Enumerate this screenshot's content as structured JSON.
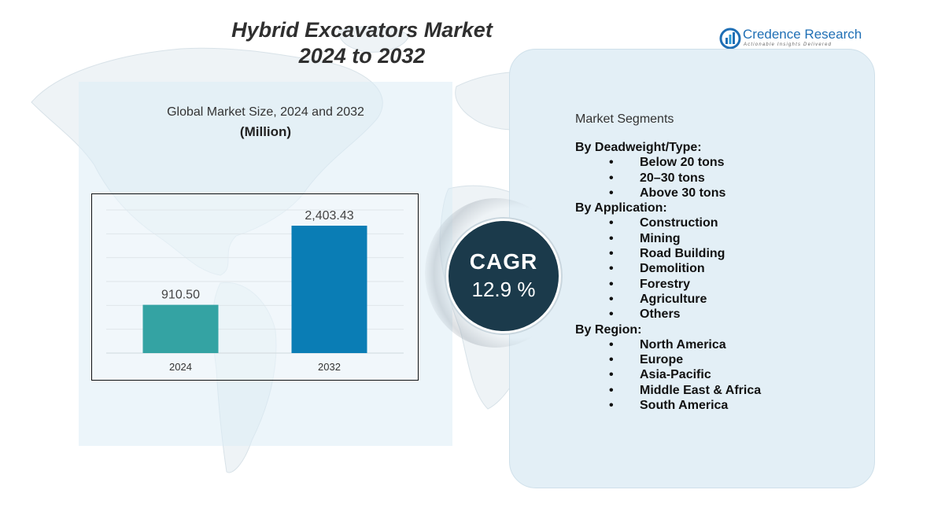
{
  "header": {
    "title_line1": "Hybrid Excavators Market",
    "title_line2": "2024 to 2032"
  },
  "logo": {
    "name": "Credence Research",
    "tagline": "Actionable Insights Delivered",
    "brand_color": "#1f6fb5"
  },
  "chart_data": {
    "type": "bar",
    "title": "Global Market Size, 2024 and 2032",
    "unit": "(Million)",
    "categories": [
      "2024",
      "2032"
    ],
    "values": [
      910.5,
      2403.43
    ],
    "value_labels": [
      "910.50",
      "2,403.43"
    ],
    "colors": [
      "#34a3a3",
      "#0a7db5"
    ],
    "ylim": [
      0,
      2700
    ],
    "grid": true,
    "legend": "none"
  },
  "cagr": {
    "label": "CAGR",
    "value": "12.9 %",
    "color": "#1b3a4b"
  },
  "segments": {
    "heading": "Market Segments",
    "groups": [
      {
        "title": "By Deadweight/Type:",
        "items": [
          "Below 20 tons",
          "20–30 tons",
          "Above 30 tons"
        ]
      },
      {
        "title": "By Application:",
        "items": [
          "Construction",
          "Mining",
          "Road Building",
          "Demolition",
          "Forestry",
          "Agriculture",
          "Others"
        ]
      },
      {
        "title": "By Region:",
        "items": [
          "North America",
          "Europe",
          "Asia-Pacific",
          "Middle East & Africa",
          "South America"
        ]
      }
    ]
  }
}
